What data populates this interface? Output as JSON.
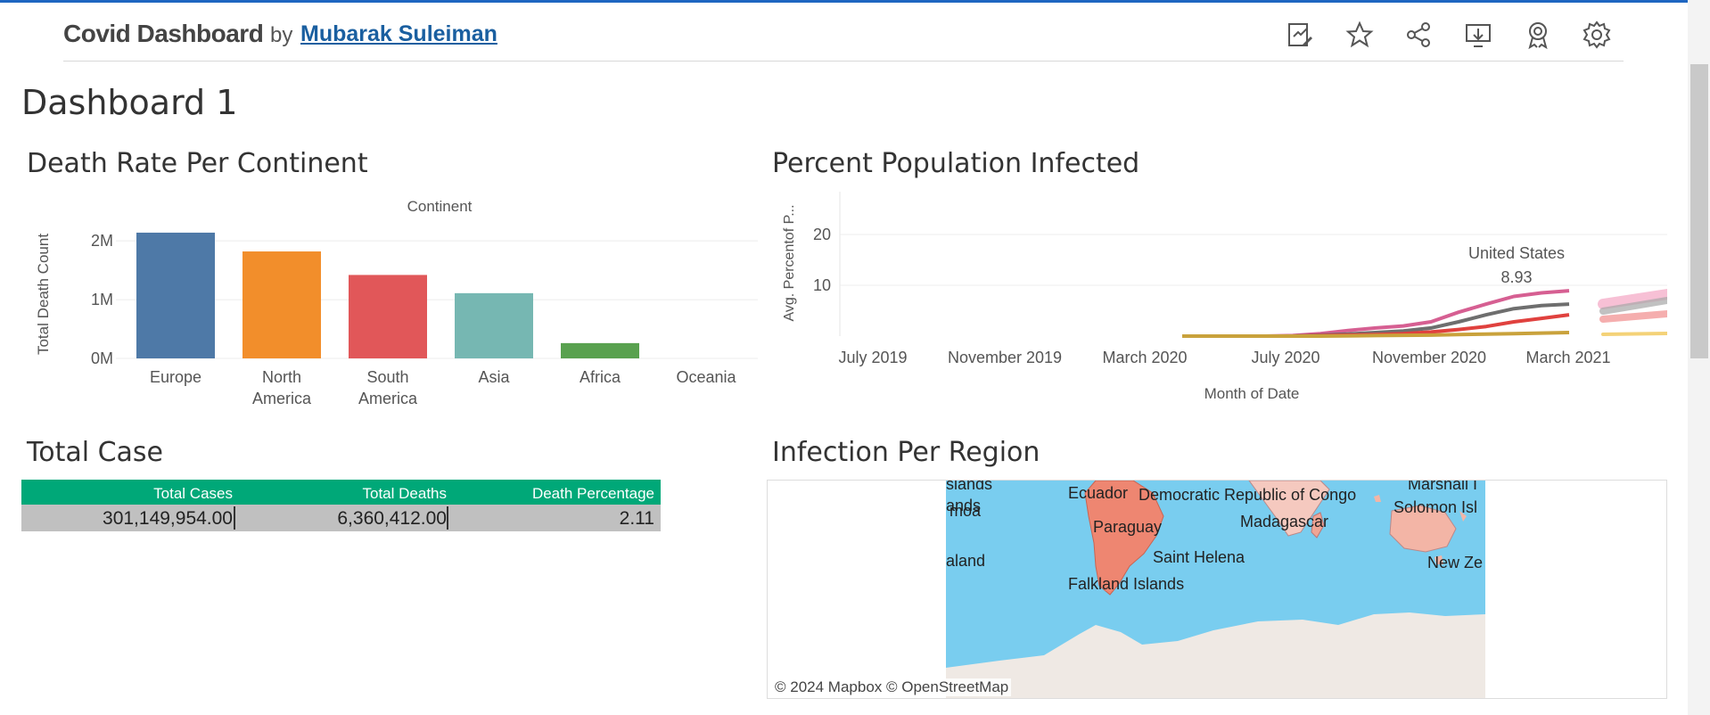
{
  "header": {
    "title": "Covid Dashboard",
    "by": "by",
    "author": "Mubarak Suleiman",
    "icons": [
      "edit-icon",
      "star-icon",
      "share-icon",
      "download-icon",
      "badge-icon",
      "gear-icon"
    ]
  },
  "dashboard_title": "Dashboard 1",
  "sections": {
    "death_rate": "Death Rate Per Continent",
    "percent_infected": "Percent Population Infected",
    "total_case": "Total Case",
    "infection_region": "Infection Per Region"
  },
  "chart_data": [
    {
      "type": "bar",
      "title": "Death Rate Per Continent",
      "column_header": "Continent",
      "ylabel": "Total Death Count",
      "yticks": [
        "2M",
        "1M",
        "0M"
      ],
      "categories": [
        "Europe",
        "North America",
        "South America",
        "Asia",
        "Africa",
        "Oceania"
      ],
      "category_lines": [
        [
          "Europe"
        ],
        [
          "North",
          "America"
        ],
        [
          "South",
          "America"
        ],
        [
          "Asia"
        ],
        [
          "Africa"
        ],
        [
          "Oceania"
        ]
      ],
      "values": [
        2140000,
        1820000,
        1420000,
        1110000,
        260000,
        0
      ],
      "colors": [
        "#4e79a7",
        "#f28e2b",
        "#e15759",
        "#76b7b2",
        "#59a14f",
        "#edc948"
      ],
      "ylim": [
        0,
        2200000
      ]
    },
    {
      "type": "line",
      "title": "Percent Population Infected",
      "ylabel": "Avg. Percentof P...",
      "xlabel": "Month of Date",
      "yticks": [
        "20",
        "10"
      ],
      "xticks": [
        "July 2019",
        "November 2019",
        "March 2020",
        "July 2020",
        "November 2020",
        "March 2021"
      ],
      "annotation": {
        "label": "United States",
        "value": "8.93"
      },
      "series": [
        {
          "color": "#d65f92",
          "values": [
            0,
            0,
            0,
            0,
            0.1,
            0.5,
            1.1,
            1.6,
            2.0,
            2.8,
            4.7,
            6.3,
            7.8,
            8.5,
            8.93
          ]
        },
        {
          "color": "#6e6e6e",
          "values": [
            0,
            0,
            0,
            0,
            0,
            0.2,
            0.4,
            0.7,
            1.0,
            1.6,
            2.8,
            4.2,
            5.4,
            6.0,
            6.3
          ]
        },
        {
          "color": "#e0413e",
          "values": [
            0,
            0,
            0,
            0,
            0,
            0.1,
            0.2,
            0.3,
            0.5,
            0.8,
            1.3,
            1.9,
            2.8,
            3.5,
            4.2
          ]
        },
        {
          "color": "#c9a23c",
          "values": [
            0,
            0,
            0,
            0,
            0,
            0,
            0.05,
            0.1,
            0.15,
            0.2,
            0.3,
            0.4,
            0.5,
            0.6,
            0.7
          ]
        }
      ]
    }
  ],
  "table": {
    "headers": [
      "Total Cases",
      "Total Deaths",
      "Death Percentage"
    ],
    "row": [
      "301,149,954.00",
      "6,360,412.00",
      "2.11"
    ]
  },
  "map": {
    "labels": [
      "Ecuador",
      "Democratic Republic of Congo",
      "Paraguay",
      "Madagascar",
      "Saint Helena",
      "Falkland Islands",
      "Solomon Isl",
      "New Ze",
      "Marshall I",
      "slands",
      "ands",
      "moa",
      "aland"
    ],
    "copyright": "© 2024 Mapbox  © OpenStreetMap"
  }
}
